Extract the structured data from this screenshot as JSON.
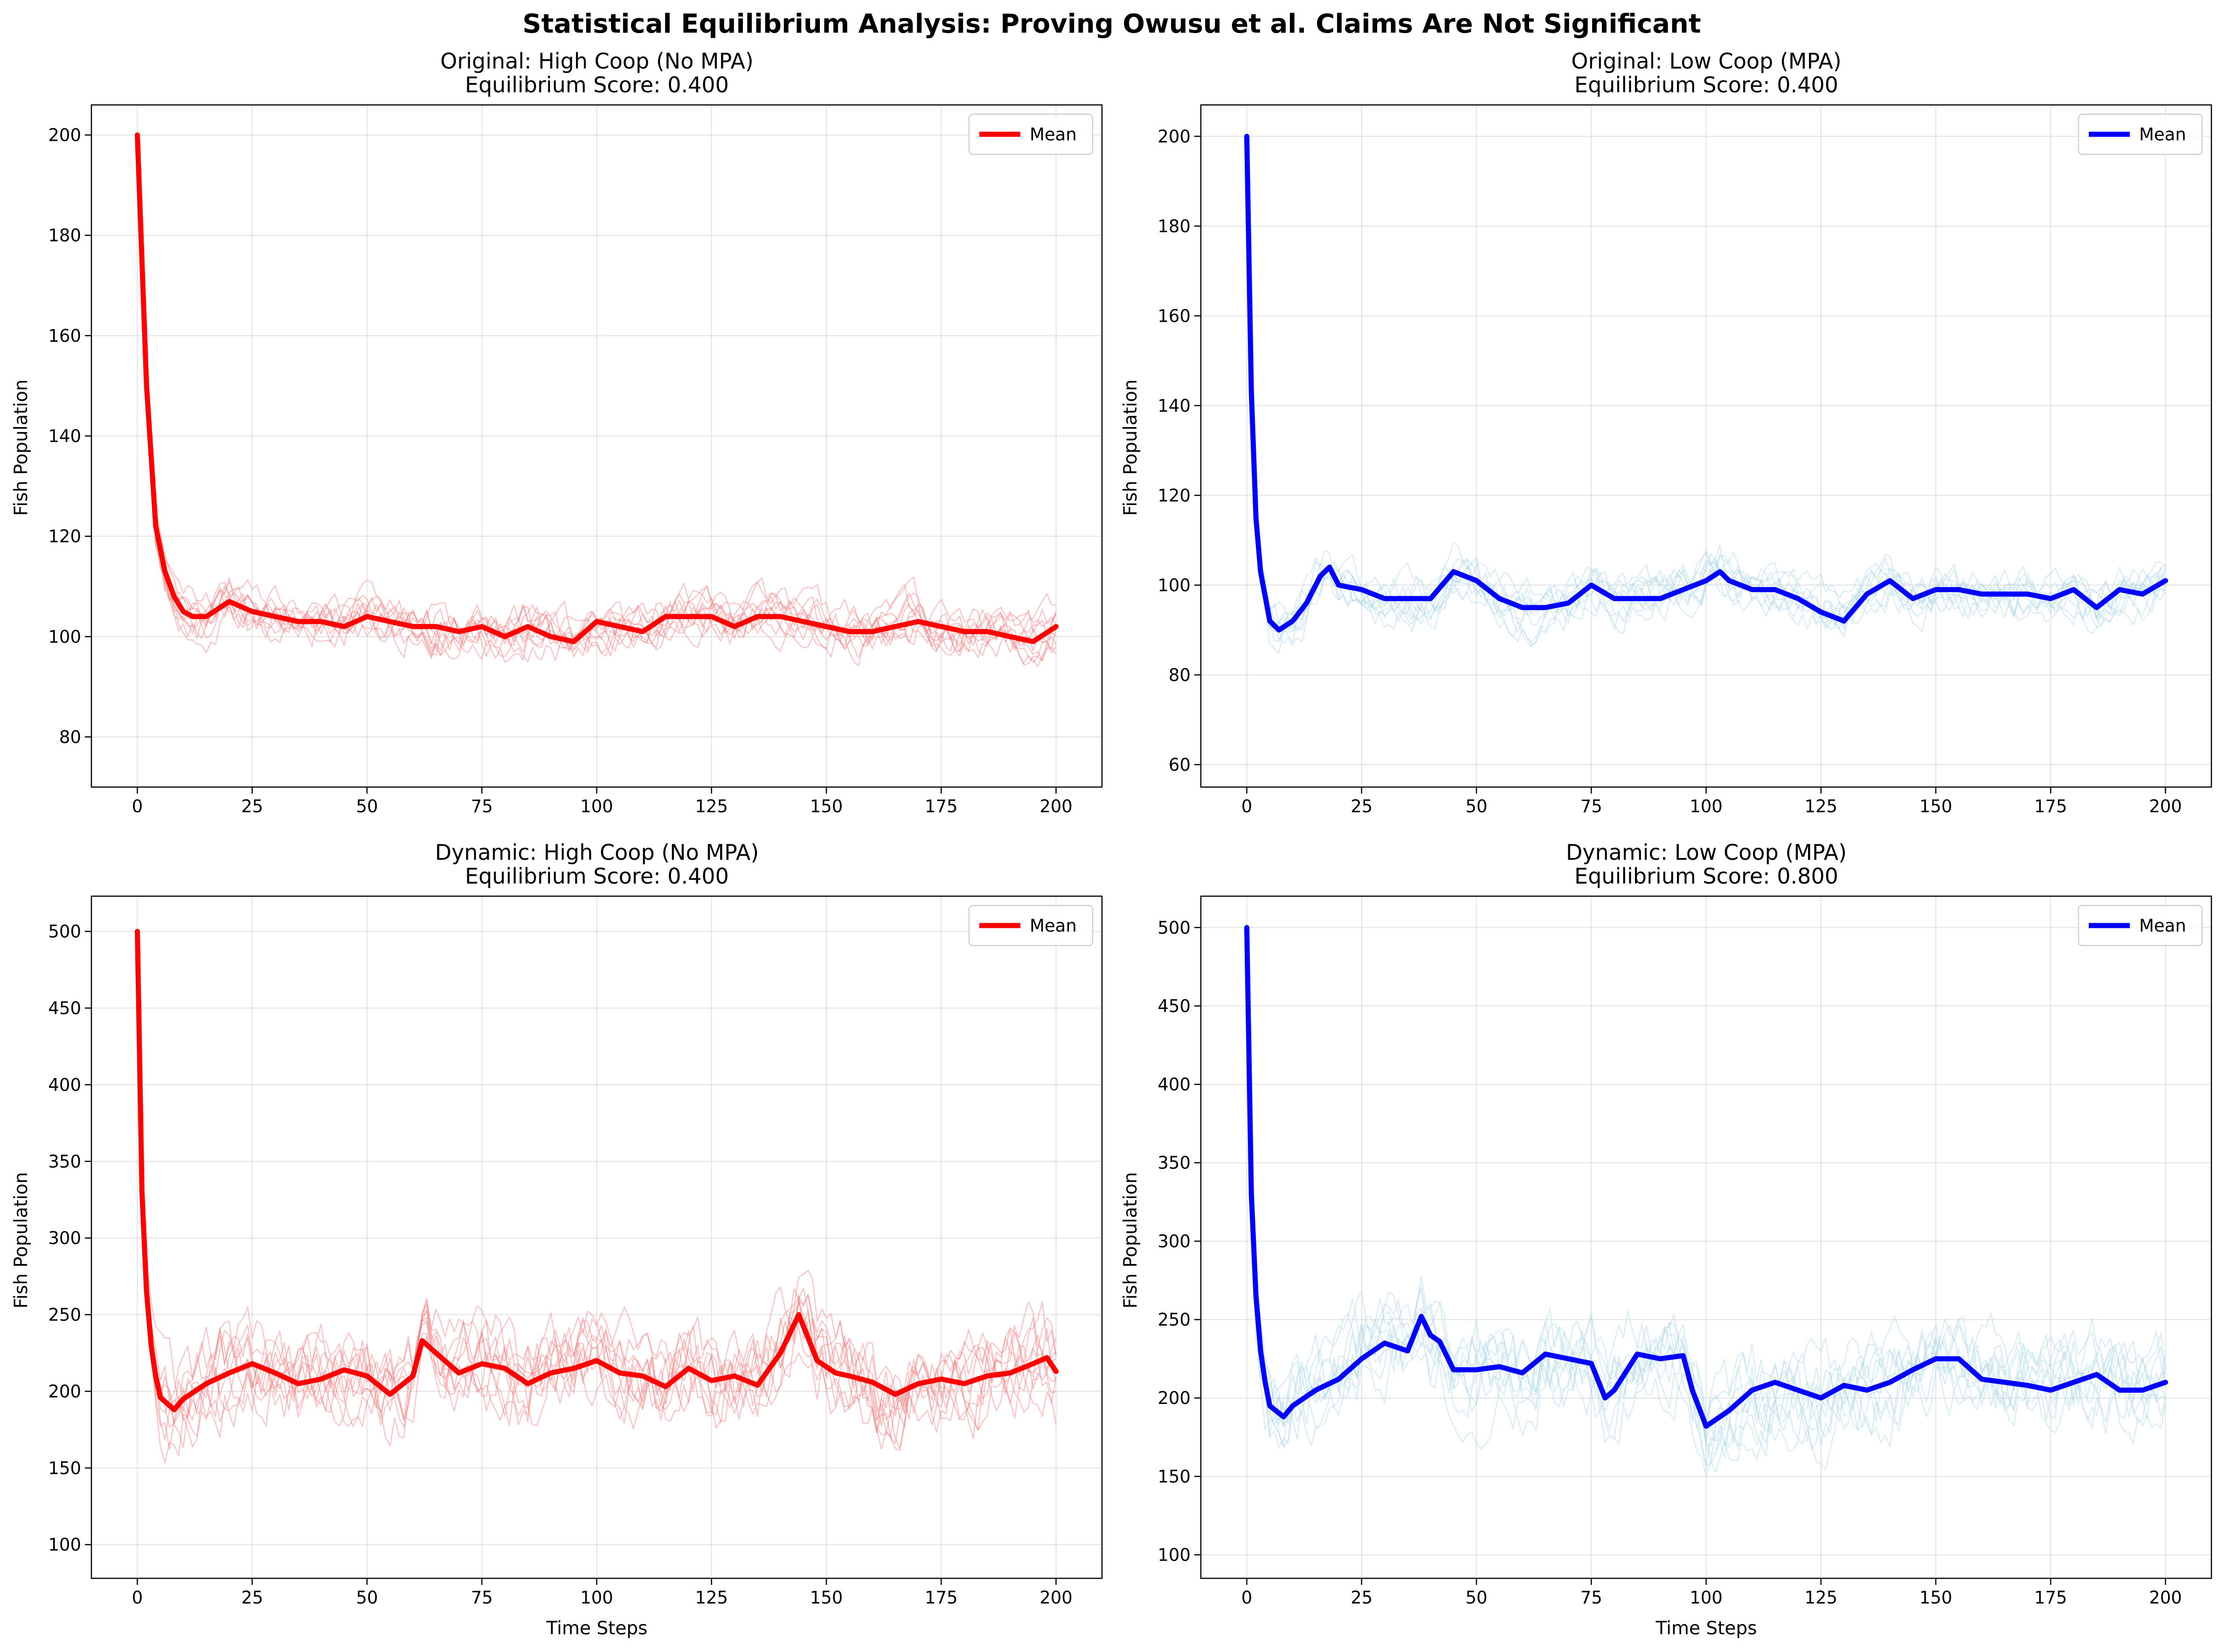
{
  "figure_title": "Statistical Equilibrium Analysis: Proving Owusu et al. Claims Are Not Significant",
  "chart_data": [
    {
      "type": "line",
      "title": "Original: High Coop (No MPA)",
      "subtitle": "Equilibrium Score: 0.400",
      "xlabel": "",
      "ylabel": "Fish Population",
      "xlim": [
        -10,
        210
      ],
      "ylim": [
        70,
        206
      ],
      "xticks": [
        0,
        25,
        50,
        75,
        100,
        125,
        150,
        175,
        200
      ],
      "yticks": [
        80,
        100,
        120,
        140,
        160,
        180,
        200
      ],
      "grid": true,
      "legend": {
        "position": "top-right",
        "entries": [
          "Mean"
        ]
      },
      "mean_color": "#ff0000",
      "replicate_color": "#f08080",
      "replicate_count": 10,
      "series": [
        {
          "name": "Mean",
          "role": "mean",
          "x": [
            0,
            2,
            4,
            6,
            8,
            10,
            12,
            15,
            20,
            25,
            30,
            35,
            40,
            45,
            50,
            55,
            60,
            65,
            70,
            75,
            80,
            85,
            90,
            95,
            100,
            105,
            110,
            115,
            120,
            125,
            130,
            135,
            140,
            145,
            150,
            155,
            160,
            165,
            170,
            175,
            180,
            185,
            190,
            195,
            200
          ],
          "y": [
            200,
            150,
            122,
            113,
            108,
            105,
            104,
            104,
            107,
            105,
            104,
            103,
            103,
            102,
            104,
            103,
            102,
            102,
            101,
            102,
            100,
            102,
            100,
            99,
            103,
            102,
            101,
            104,
            104,
            104,
            102,
            104,
            104,
            103,
            102,
            101,
            101,
            102,
            103,
            102,
            101,
            101,
            100,
            99,
            102
          ]
        }
      ]
    },
    {
      "type": "line",
      "title": "Original: Low Coop (MPA)",
      "subtitle": "Equilibrium Score: 0.400",
      "xlabel": "",
      "ylabel": "Fish Population",
      "xlim": [
        -10,
        210
      ],
      "ylim": [
        55,
        207
      ],
      "xticks": [
        0,
        25,
        50,
        75,
        100,
        125,
        150,
        175,
        200
      ],
      "yticks": [
        60,
        80,
        100,
        120,
        140,
        160,
        180,
        200
      ],
      "grid": true,
      "legend": {
        "position": "top-right",
        "entries": [
          "Mean"
        ]
      },
      "mean_color": "#0000ff",
      "replicate_color": "#add8e6",
      "replicate_count": 10,
      "series": [
        {
          "name": "Mean",
          "role": "mean",
          "x": [
            0,
            1,
            2,
            3,
            5,
            7,
            10,
            13,
            16,
            18,
            20,
            25,
            30,
            35,
            40,
            45,
            50,
            55,
            60,
            65,
            70,
            75,
            80,
            85,
            90,
            95,
            100,
            103,
            105,
            110,
            115,
            120,
            125,
            130,
            135,
            140,
            145,
            150,
            155,
            160,
            165,
            170,
            175,
            180,
            185,
            190,
            195,
            200
          ],
          "y": [
            200,
            143,
            115,
            103,
            92,
            90,
            92,
            96,
            102,
            104,
            100,
            99,
            97,
            97,
            97,
            103,
            101,
            97,
            95,
            95,
            96,
            100,
            97,
            97,
            97,
            99,
            101,
            103,
            101,
            99,
            99,
            97,
            94,
            92,
            98,
            101,
            97,
            99,
            99,
            98,
            98,
            98,
            97,
            99,
            95,
            99,
            98,
            101
          ]
        }
      ]
    },
    {
      "type": "line",
      "title": "Dynamic: High Coop (No MPA)",
      "subtitle": "Equilibrium Score: 0.400",
      "xlabel": "Time Steps",
      "ylabel": "Fish Population",
      "xlim": [
        -10,
        210
      ],
      "ylim": [
        78,
        523
      ],
      "xticks": [
        0,
        25,
        50,
        75,
        100,
        125,
        150,
        175,
        200
      ],
      "yticks": [
        100,
        150,
        200,
        250,
        300,
        350,
        400,
        450,
        500
      ],
      "grid": true,
      "legend": {
        "position": "top-right",
        "entries": [
          "Mean"
        ]
      },
      "mean_color": "#ff0000",
      "replicate_color": "#f08080",
      "replicate_count": 10,
      "series": [
        {
          "name": "Mean",
          "role": "mean",
          "x": [
            0,
            1,
            2,
            3,
            4,
            5,
            8,
            10,
            15,
            20,
            25,
            30,
            35,
            40,
            45,
            50,
            55,
            60,
            62,
            65,
            70,
            75,
            80,
            85,
            90,
            95,
            100,
            105,
            110,
            115,
            120,
            125,
            130,
            135,
            140,
            144,
            148,
            152,
            155,
            160,
            165,
            170,
            175,
            180,
            185,
            190,
            195,
            198,
            200
          ],
          "y": [
            500,
            330,
            265,
            230,
            210,
            196,
            188,
            195,
            205,
            212,
            218,
            212,
            205,
            208,
            214,
            210,
            198,
            210,
            233,
            225,
            212,
            218,
            215,
            205,
            212,
            215,
            220,
            212,
            210,
            203,
            215,
            207,
            210,
            204,
            225,
            250,
            220,
            212,
            210,
            206,
            198,
            205,
            208,
            205,
            210,
            212,
            218,
            222,
            213
          ]
        }
      ]
    },
    {
      "type": "line",
      "title": "Dynamic: Low Coop (MPA)",
      "subtitle": "Equilibrium Score: 0.800",
      "xlabel": "Time Steps",
      "ylabel": "Fish Population",
      "xlim": [
        -10,
        210
      ],
      "ylim": [
        85,
        520
      ],
      "xticks": [
        0,
        25,
        50,
        75,
        100,
        125,
        150,
        175,
        200
      ],
      "yticks": [
        100,
        150,
        200,
        250,
        300,
        350,
        400,
        450,
        500
      ],
      "grid": true,
      "legend": {
        "position": "top-right",
        "entries": [
          "Mean"
        ]
      },
      "mean_color": "#0000ff",
      "replicate_color": "#add8e6",
      "replicate_count": 10,
      "series": [
        {
          "name": "Mean",
          "role": "mean",
          "x": [
            0,
            1,
            2,
            3,
            4,
            5,
            8,
            10,
            15,
            20,
            25,
            30,
            35,
            38,
            40,
            42,
            45,
            50,
            55,
            60,
            65,
            70,
            75,
            78,
            80,
            85,
            90,
            95,
            97,
            100,
            105,
            110,
            115,
            120,
            125,
            130,
            135,
            140,
            145,
            150,
            155,
            160,
            165,
            170,
            175,
            180,
            185,
            190,
            195,
            200
          ],
          "y": [
            500,
            330,
            265,
            230,
            210,
            195,
            188,
            195,
            205,
            212,
            225,
            235,
            230,
            252,
            240,
            236,
            218,
            218,
            220,
            216,
            228,
            225,
            222,
            200,
            205,
            228,
            225,
            227,
            205,
            182,
            192,
            205,
            210,
            205,
            200,
            208,
            205,
            210,
            218,
            225,
            225,
            212,
            210,
            208,
            205,
            210,
            215,
            205,
            205,
            210
          ]
        }
      ]
    }
  ]
}
